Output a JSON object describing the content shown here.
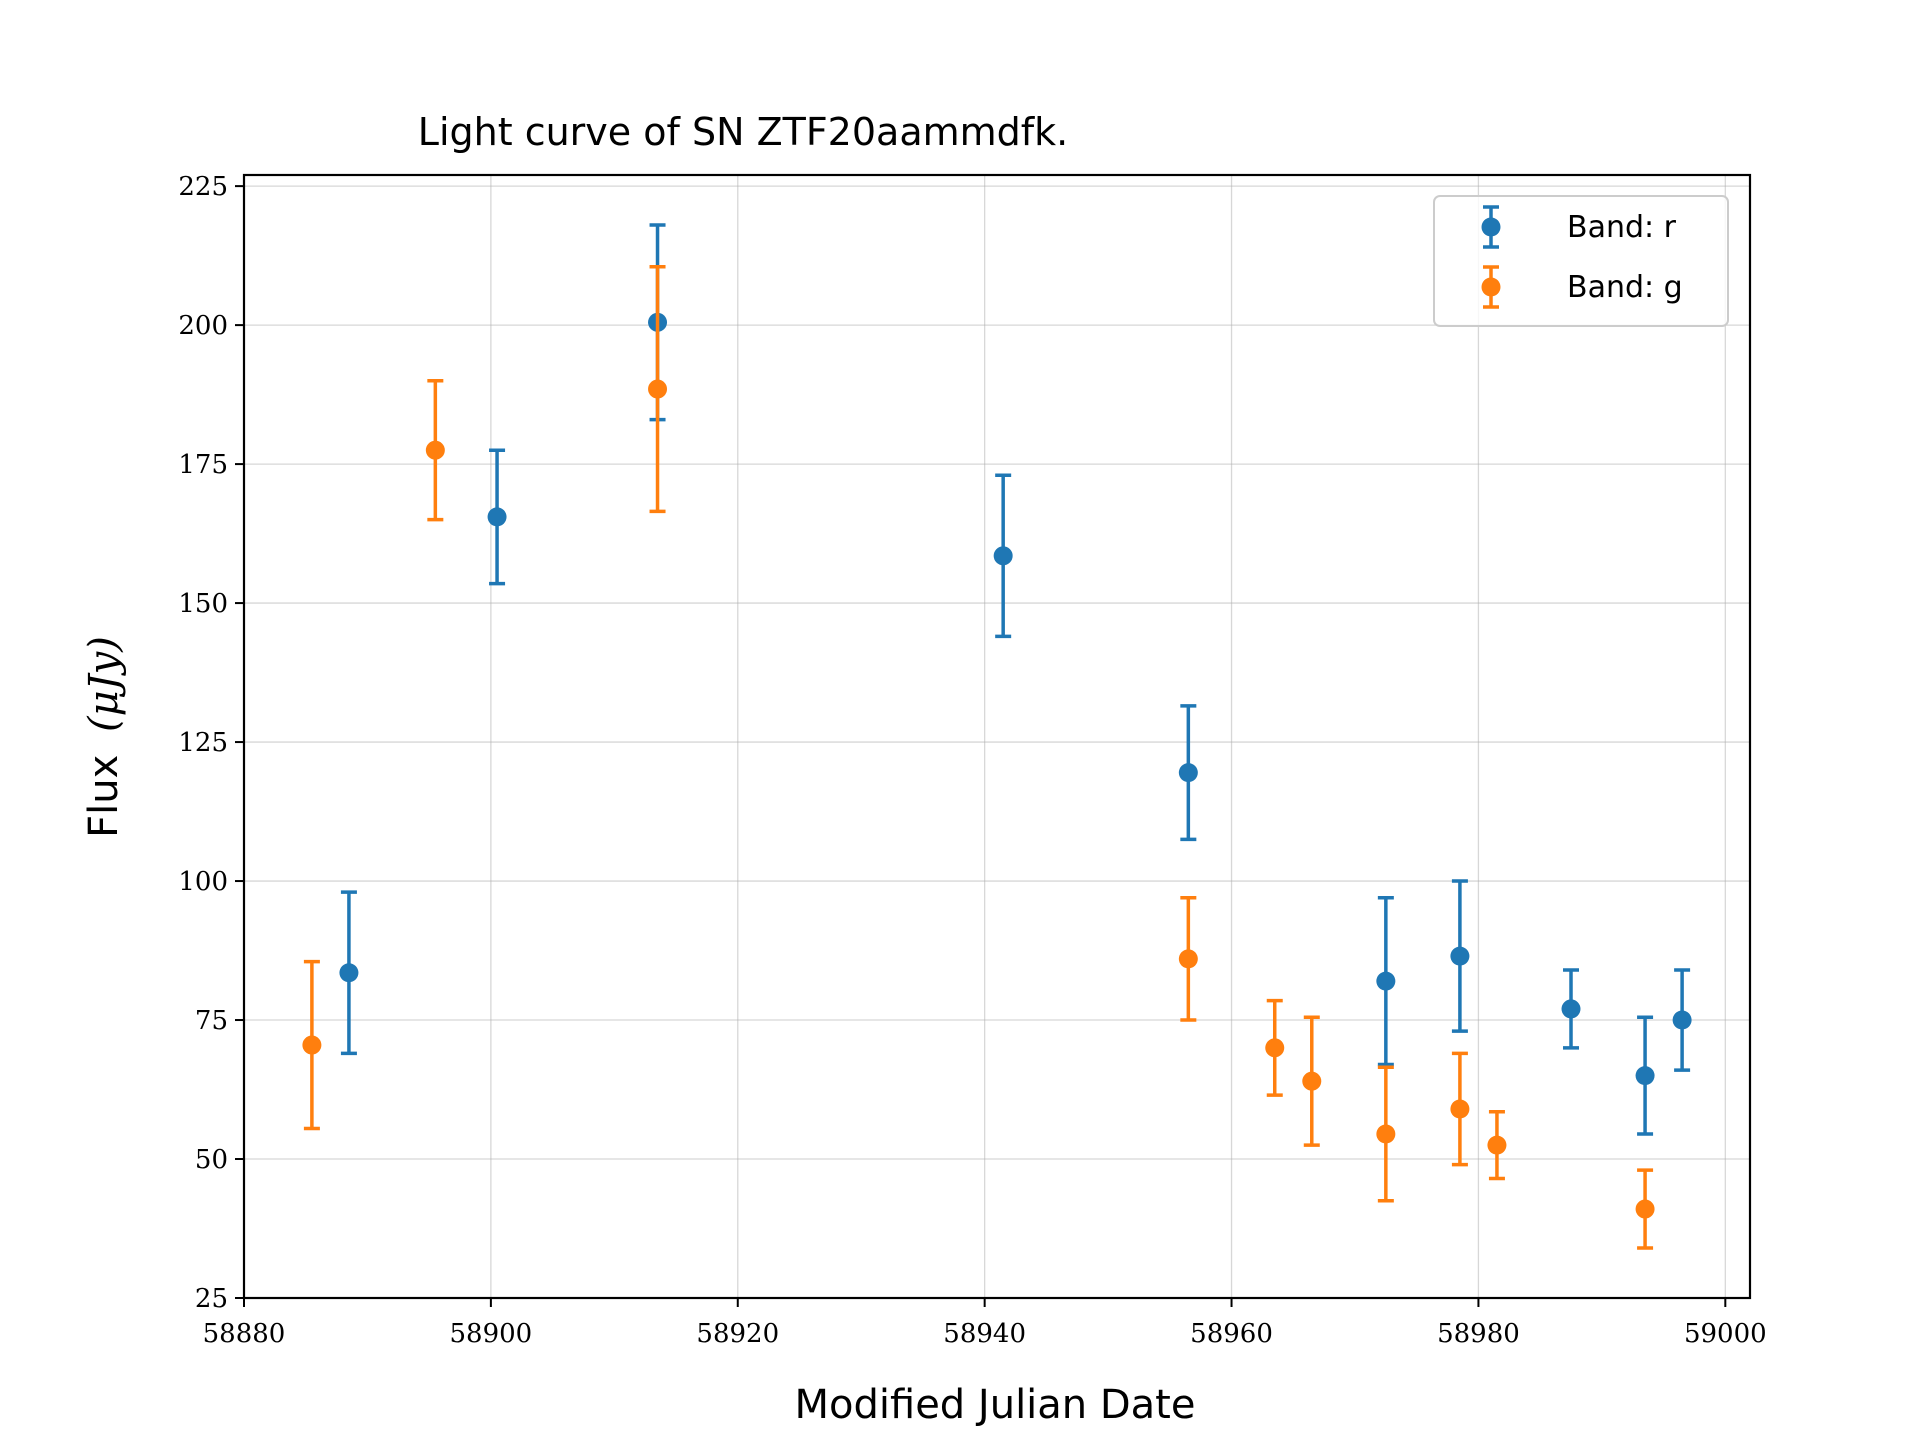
{
  "chart_data": {
    "type": "scatter",
    "title": "Light curve of SN ZTF20aammdfk.",
    "xlabel": "Modified Julian Date",
    "ylabel_text": "Flux",
    "ylabel_unit": "(μJy)",
    "xlim": [
      58880,
      59002
    ],
    "ylim": [
      25,
      227
    ],
    "xticks": [
      58880,
      58900,
      58920,
      58940,
      58960,
      58980,
      59000
    ],
    "yticks": [
      25,
      50,
      75,
      100,
      125,
      150,
      175,
      200,
      225
    ],
    "grid": true,
    "legend_position": "top-right",
    "series": [
      {
        "name": "Band: r",
        "color": "#1f77b4",
        "points": [
          {
            "x": 58888.5,
            "y": 83.5,
            "err": 14.5
          },
          {
            "x": 58900.5,
            "y": 165.5,
            "err": 12.0
          },
          {
            "x": 58913.5,
            "y": 200.5,
            "err": 17.5
          },
          {
            "x": 58941.5,
            "y": 158.5,
            "err": 14.5
          },
          {
            "x": 58956.5,
            "y": 119.5,
            "err": 12.0
          },
          {
            "x": 58972.5,
            "y": 82.0,
            "err": 15.0
          },
          {
            "x": 58978.5,
            "y": 86.5,
            "err": 13.5
          },
          {
            "x": 58987.5,
            "y": 77.0,
            "err": 7.0
          },
          {
            "x": 58993.5,
            "y": 65.0,
            "err": 10.5
          },
          {
            "x": 58996.5,
            "y": 75.0,
            "err": 9.0
          }
        ]
      },
      {
        "name": "Band: g",
        "color": "#ff7f0e",
        "points": [
          {
            "x": 58885.5,
            "y": 70.5,
            "err": 15.0
          },
          {
            "x": 58895.5,
            "y": 177.5,
            "err": 12.5
          },
          {
            "x": 58913.5,
            "y": 188.5,
            "err": 22.0
          },
          {
            "x": 58956.5,
            "y": 86.0,
            "err": 11.0
          },
          {
            "x": 58963.5,
            "y": 70.0,
            "err": 8.5
          },
          {
            "x": 58966.5,
            "y": 64.0,
            "err": 11.5
          },
          {
            "x": 58972.5,
            "y": 54.5,
            "err": 12.0
          },
          {
            "x": 58978.5,
            "y": 59.0,
            "err": 10.0
          },
          {
            "x": 58981.5,
            "y": 52.5,
            "err": 6.0
          },
          {
            "x": 58993.5,
            "y": 41.0,
            "err": 7.0
          }
        ]
      }
    ]
  }
}
